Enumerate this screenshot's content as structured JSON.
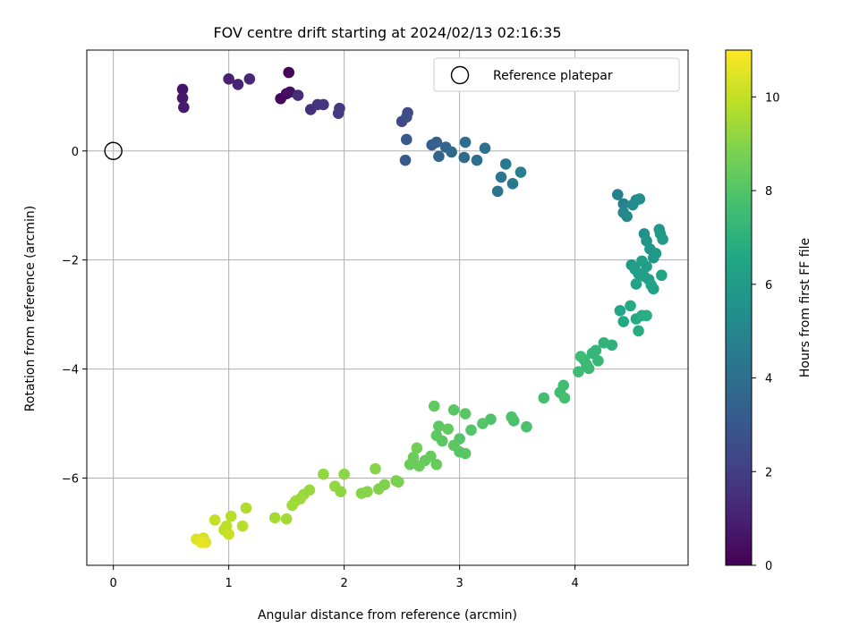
{
  "chart_data": {
    "type": "scatter",
    "title": "FOV centre drift starting at 2024/02/13 02:16:35",
    "xlabel": "Angular distance from reference (arcmin)",
    "ylabel": "Rotation from reference (arcmin)",
    "xlim": [
      -0.23,
      4.98
    ],
    "ylim": [
      -7.6,
      1.85
    ],
    "xticks": [
      0,
      1,
      2,
      3,
      4
    ],
    "yticks": [
      0,
      -2,
      -4,
      -6
    ],
    "grid": true,
    "legend": {
      "position": "top-right",
      "entries": [
        "Reference platepar"
      ]
    },
    "reference_point": {
      "x": 0,
      "y": 0,
      "label": "Reference platepar"
    },
    "colorbar": {
      "label": "Hours from first FF file",
      "colormap": "viridis",
      "range": [
        0,
        11
      ],
      "ticks": [
        0,
        2,
        4,
        6,
        8,
        10
      ]
    },
    "points": [
      [
        1.52,
        1.44,
        0.1
      ],
      [
        1.45,
        0.96,
        0.2
      ],
      [
        1.5,
        1.05,
        0.3
      ],
      [
        1.53,
        1.08,
        0.4
      ],
      [
        0.6,
        1.13,
        0.6
      ],
      [
        0.6,
        0.97,
        0.7
      ],
      [
        0.61,
        0.8,
        0.8
      ],
      [
        1.0,
        1.32,
        1.0
      ],
      [
        1.08,
        1.22,
        1.1
      ],
      [
        1.18,
        1.32,
        1.2
      ],
      [
        1.6,
        1.02,
        1.4
      ],
      [
        1.71,
        0.76,
        1.5
      ],
      [
        1.77,
        0.85,
        1.6
      ],
      [
        1.82,
        0.85,
        1.7
      ],
      [
        1.95,
        0.69,
        1.8
      ],
      [
        1.96,
        0.78,
        1.9
      ],
      [
        2.5,
        0.54,
        2.4
      ],
      [
        2.55,
        0.7,
        2.5
      ],
      [
        2.54,
        0.62,
        2.6
      ],
      [
        2.54,
        0.21,
        3.0
      ],
      [
        2.53,
        -0.17,
        3.1
      ],
      [
        2.76,
        0.11,
        3.3
      ],
      [
        2.8,
        0.16,
        3.4
      ],
      [
        2.82,
        -0.1,
        3.5
      ],
      [
        2.88,
        0.07,
        3.6
      ],
      [
        2.93,
        -0.02,
        3.7
      ],
      [
        3.04,
        -0.12,
        3.8
      ],
      [
        3.05,
        0.16,
        3.9
      ],
      [
        3.15,
        -0.17,
        4.0
      ],
      [
        3.22,
        0.05,
        4.1
      ],
      [
        3.33,
        -0.74,
        4.2
      ],
      [
        3.36,
        -0.48,
        4.3
      ],
      [
        3.4,
        -0.24,
        4.4
      ],
      [
        3.46,
        -0.6,
        4.5
      ],
      [
        3.53,
        -0.39,
        4.6
      ],
      [
        4.37,
        -0.8,
        4.8
      ],
      [
        4.42,
        -0.97,
        4.9
      ],
      [
        4.42,
        -1.13,
        5.0
      ],
      [
        4.45,
        -1.2,
        5.1
      ],
      [
        4.5,
        -0.99,
        5.2
      ],
      [
        4.53,
        -0.9,
        5.3
      ],
      [
        4.56,
        -0.88,
        5.4
      ],
      [
        4.6,
        -1.52,
        5.5
      ],
      [
        4.62,
        -1.65,
        5.6
      ],
      [
        4.65,
        -1.8,
        5.7
      ],
      [
        4.68,
        -1.96,
        5.8
      ],
      [
        4.7,
        -1.88,
        5.9
      ],
      [
        4.73,
        -1.44,
        5.9
      ],
      [
        4.74,
        -1.52,
        6.0
      ],
      [
        4.76,
        -1.62,
        6.0
      ],
      [
        4.49,
        -2.09,
        6.0
      ],
      [
        4.52,
        -2.17,
        6.1
      ],
      [
        4.55,
        -2.25,
        6.1
      ],
      [
        4.58,
        -2.02,
        6.1
      ],
      [
        4.6,
        -2.3,
        6.2
      ],
      [
        4.62,
        -2.12,
        6.2
      ],
      [
        4.64,
        -2.36,
        6.2
      ],
      [
        4.66,
        -2.46,
        6.3
      ],
      [
        4.68,
        -2.53,
        6.3
      ],
      [
        4.53,
        -2.44,
        6.3
      ],
      [
        4.75,
        -2.28,
        6.4
      ],
      [
        4.39,
        -2.93,
        6.5
      ],
      [
        4.42,
        -3.13,
        6.6
      ],
      [
        4.48,
        -2.84,
        6.7
      ],
      [
        4.53,
        -3.08,
        6.7
      ],
      [
        4.55,
        -3.3,
        6.8
      ],
      [
        4.58,
        -3.02,
        6.8
      ],
      [
        4.62,
        -3.02,
        6.9
      ],
      [
        4.32,
        -3.56,
        7.0
      ],
      [
        4.25,
        -3.52,
        7.1
      ],
      [
        4.18,
        -3.66,
        7.2
      ],
      [
        4.15,
        -3.71,
        7.2
      ],
      [
        4.2,
        -3.85,
        7.3
      ],
      [
        4.1,
        -3.92,
        7.3
      ],
      [
        4.08,
        -3.83,
        7.4
      ],
      [
        4.12,
        -3.99,
        7.4
      ],
      [
        4.05,
        -3.77,
        7.5
      ],
      [
        4.03,
        -4.05,
        7.5
      ],
      [
        3.9,
        -4.3,
        7.6
      ],
      [
        3.87,
        -4.43,
        7.6
      ],
      [
        3.91,
        -4.53,
        7.7
      ],
      [
        3.73,
        -4.53,
        7.7
      ],
      [
        3.58,
        -5.06,
        7.8
      ],
      [
        3.47,
        -4.95,
        7.8
      ],
      [
        3.45,
        -4.88,
        7.9
      ],
      [
        3.27,
        -4.92,
        7.9
      ],
      [
        3.2,
        -5.0,
        8.0
      ],
      [
        3.1,
        -5.12,
        8.0
      ],
      [
        3.0,
        -5.28,
        8.0
      ],
      [
        3.05,
        -5.55,
        8.1
      ],
      [
        3.0,
        -5.52,
        8.1
      ],
      [
        3.05,
        -4.82,
        8.1
      ],
      [
        2.95,
        -4.75,
        8.1
      ],
      [
        2.95,
        -5.4,
        8.2
      ],
      [
        2.85,
        -5.32,
        8.2
      ],
      [
        2.8,
        -5.22,
        8.2
      ],
      [
        2.82,
        -5.05,
        8.2
      ],
      [
        2.9,
        -5.1,
        8.3
      ],
      [
        2.78,
        -4.68,
        8.3
      ],
      [
        2.75,
        -5.6,
        8.4
      ],
      [
        2.8,
        -5.75,
        8.4
      ],
      [
        2.7,
        -5.68,
        8.4
      ],
      [
        2.65,
        -5.78,
        8.5
      ],
      [
        2.6,
        -5.62,
        8.5
      ],
      [
        2.57,
        -5.75,
        8.5
      ],
      [
        2.63,
        -5.45,
        8.6
      ],
      [
        2.47,
        -6.07,
        8.8
      ],
      [
        2.45,
        -6.05,
        8.8
      ],
      [
        2.35,
        -6.12,
        8.9
      ],
      [
        2.3,
        -6.2,
        8.9
      ],
      [
        2.27,
        -5.83,
        9.0
      ],
      [
        2.2,
        -6.25,
        9.0
      ],
      [
        2.15,
        -6.28,
        9.0
      ],
      [
        2.0,
        -5.93,
        9.1
      ],
      [
        1.97,
        -6.25,
        9.1
      ],
      [
        1.92,
        -6.15,
        9.2
      ],
      [
        1.82,
        -5.93,
        9.2
      ],
      [
        1.7,
        -6.22,
        9.3
      ],
      [
        1.65,
        -6.3,
        9.3
      ],
      [
        1.62,
        -6.38,
        9.4
      ],
      [
        1.58,
        -6.42,
        9.4
      ],
      [
        1.55,
        -6.5,
        9.4
      ],
      [
        1.5,
        -6.75,
        9.5
      ],
      [
        1.4,
        -6.73,
        9.5
      ],
      [
        1.15,
        -6.55,
        9.7
      ],
      [
        1.12,
        -6.88,
        9.8
      ],
      [
        1.02,
        -6.7,
        9.8
      ],
      [
        0.98,
        -6.88,
        9.9
      ],
      [
        0.96,
        -6.95,
        9.9
      ],
      [
        0.88,
        -6.77,
        10.0
      ],
      [
        1.0,
        -7.03,
        10.1
      ],
      [
        0.78,
        -7.1,
        10.3
      ],
      [
        0.72,
        -7.12,
        10.4
      ],
      [
        0.8,
        -7.18,
        10.5
      ],
      [
        0.76,
        -7.18,
        10.6
      ]
    ]
  }
}
